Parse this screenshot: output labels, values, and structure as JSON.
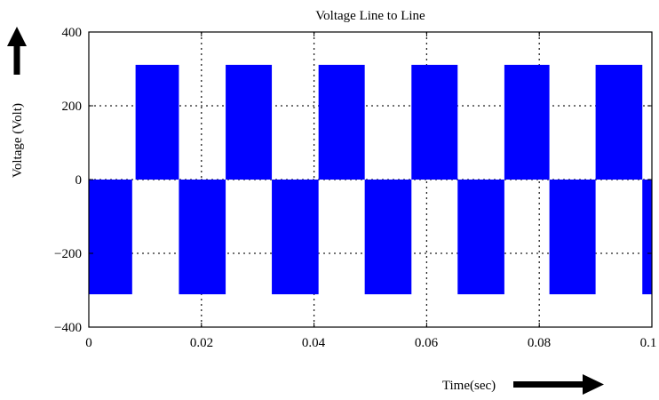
{
  "chart_data": {
    "type": "area",
    "title": "Voltage Line to Line",
    "xlabel": "Time(sec)",
    "ylabel": "Voltage (Volt)",
    "xlim": [
      0,
      0.1
    ],
    "ylim": [
      -400,
      400
    ],
    "x_ticks": [
      0,
      0.02,
      0.04,
      0.06,
      0.08,
      0.1
    ],
    "x_tick_labels": [
      "0",
      "0.02",
      "0.04",
      "0.06",
      "0.08",
      "0.1"
    ],
    "y_ticks": [
      400,
      200,
      0,
      -200,
      -400
    ],
    "y_tick_labels": [
      "400",
      "200",
      "0",
      "−200",
      "−400"
    ],
    "grid": true,
    "series": [
      {
        "color": "#0000ff",
        "pulses": [
          {
            "t_start": 0.0,
            "t_end": 0.0077,
            "value": -311
          },
          {
            "t_start": 0.0083,
            "t_end": 0.016,
            "value": 311
          },
          {
            "t_start": 0.016,
            "t_end": 0.0243,
            "value": -311
          },
          {
            "t_start": 0.0243,
            "t_end": 0.0325,
            "value": 311
          },
          {
            "t_start": 0.0325,
            "t_end": 0.0408,
            "value": -311
          },
          {
            "t_start": 0.0408,
            "t_end": 0.049,
            "value": 311
          },
          {
            "t_start": 0.049,
            "t_end": 0.0573,
            "value": -311
          },
          {
            "t_start": 0.0573,
            "t_end": 0.0655,
            "value": 311
          },
          {
            "t_start": 0.0655,
            "t_end": 0.0738,
            "value": -311
          },
          {
            "t_start": 0.0738,
            "t_end": 0.0818,
            "value": 311
          },
          {
            "t_start": 0.0818,
            "t_end": 0.09,
            "value": -311
          },
          {
            "t_start": 0.09,
            "t_end": 0.0983,
            "value": 311
          },
          {
            "t_start": 0.0983,
            "t_end": 0.1,
            "value": -311
          }
        ]
      }
    ]
  }
}
